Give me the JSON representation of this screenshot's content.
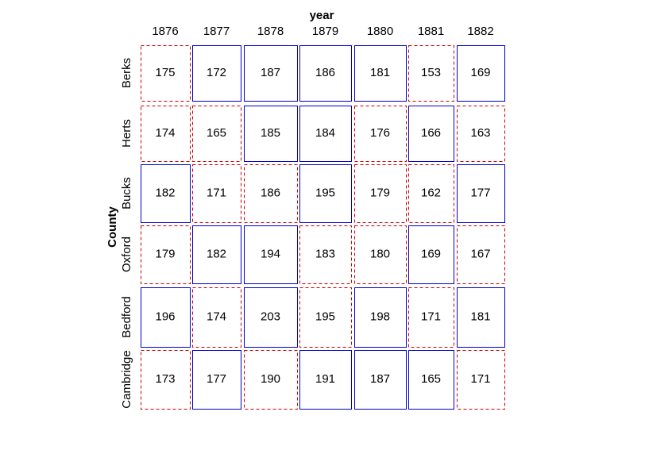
{
  "table": {
    "column_header": "year",
    "row_header": "County",
    "columns": [
      "1876",
      "1877",
      "1878",
      "1879",
      "1880",
      "1881",
      "1882"
    ],
    "rows": [
      {
        "name": "Berks",
        "values": [
          175,
          172,
          187,
          186,
          181,
          153,
          169
        ]
      },
      {
        "name": "Herts",
        "values": [
          174,
          165,
          185,
          184,
          176,
          166,
          163
        ]
      },
      {
        "name": "Bucks",
        "values": [
          182,
          171,
          186,
          195,
          179,
          162,
          177
        ]
      },
      {
        "name": "Oxford",
        "values": [
          179,
          182,
          194,
          183,
          180,
          169,
          167
        ]
      },
      {
        "name": "Bedford",
        "values": [
          196,
          174,
          203,
          195,
          198,
          171,
          181
        ]
      },
      {
        "name": "Cambridge",
        "values": [
          173,
          177,
          190,
          191,
          187,
          165,
          171
        ]
      }
    ]
  }
}
